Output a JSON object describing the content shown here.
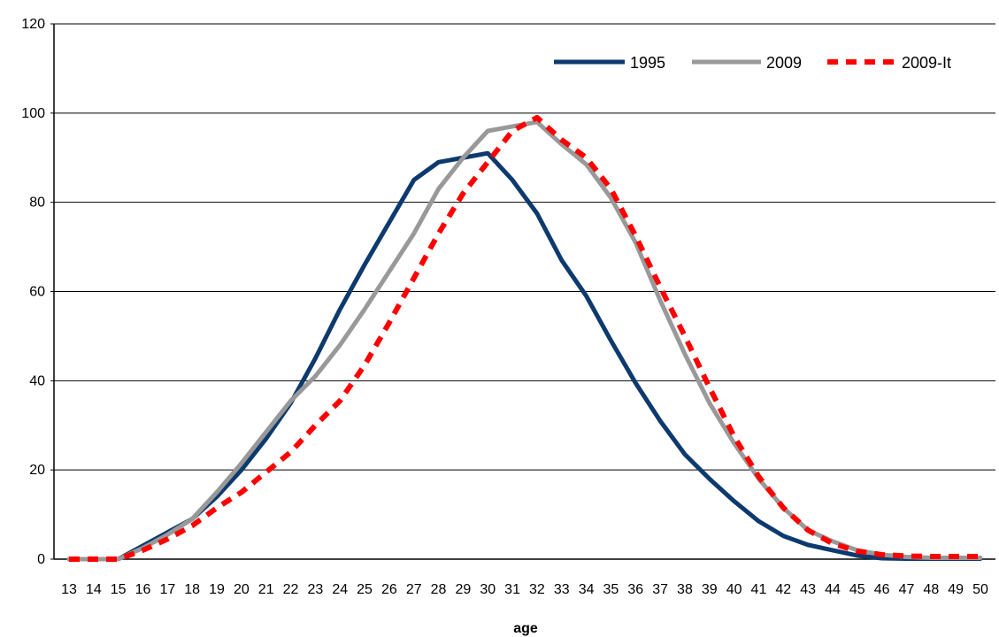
{
  "chart_data": {
    "type": "line",
    "title": "",
    "xlabel": "age",
    "ylabel": "",
    "ylim": [
      0,
      120
    ],
    "yticks": [
      0,
      20,
      40,
      60,
      80,
      100,
      120
    ],
    "grid": "horizontal",
    "legend_position": "top-right",
    "x": [
      13,
      14,
      15,
      16,
      17,
      18,
      19,
      20,
      21,
      22,
      23,
      24,
      25,
      26,
      27,
      28,
      29,
      30,
      31,
      32,
      33,
      34,
      35,
      36,
      37,
      38,
      39,
      40,
      41,
      42,
      43,
      44,
      45,
      46,
      47,
      48,
      49,
      50
    ],
    "series": [
      {
        "name": "1995",
        "color": "#0d3a6e",
        "style": "solid",
        "values": [
          0,
          0,
          0,
          3,
          6,
          9,
          14,
          20,
          27,
          35,
          45,
          56,
          66,
          75.5,
          85,
          89,
          90,
          91,
          85,
          77.5,
          67,
          59,
          49,
          39.5,
          31,
          23.5,
          18,
          13,
          8.5,
          5.2,
          3.2,
          2,
          0.8,
          0.2,
          0.1,
          0.1,
          0.1,
          0.1
        ]
      },
      {
        "name": "2009",
        "color": "#999999",
        "style": "solid",
        "values": [
          0,
          0,
          0,
          2.5,
          5.5,
          9,
          15,
          21.5,
          28.5,
          35.5,
          41,
          48,
          56,
          64.5,
          73,
          83,
          90,
          96,
          97,
          98,
          93,
          88.5,
          81,
          71,
          58,
          46,
          35,
          26,
          18,
          11.5,
          6.5,
          4,
          2,
          1,
          0.5,
          0.3,
          0.3,
          0.3
        ]
      },
      {
        "name": "2009-It",
        "color": "#ff0000",
        "style": "dashed",
        "values": [
          0,
          0,
          0,
          2,
          4.5,
          7.5,
          11.5,
          15,
          19.5,
          24,
          30,
          35.5,
          43.5,
          53,
          63,
          73,
          82,
          89,
          96,
          99,
          94,
          90,
          83,
          72.5,
          61,
          50,
          38.5,
          27.5,
          18.5,
          11.5,
          6.5,
          3.5,
          1.8,
          1,
          0.7,
          0.6,
          0.6,
          0.6
        ]
      }
    ]
  }
}
